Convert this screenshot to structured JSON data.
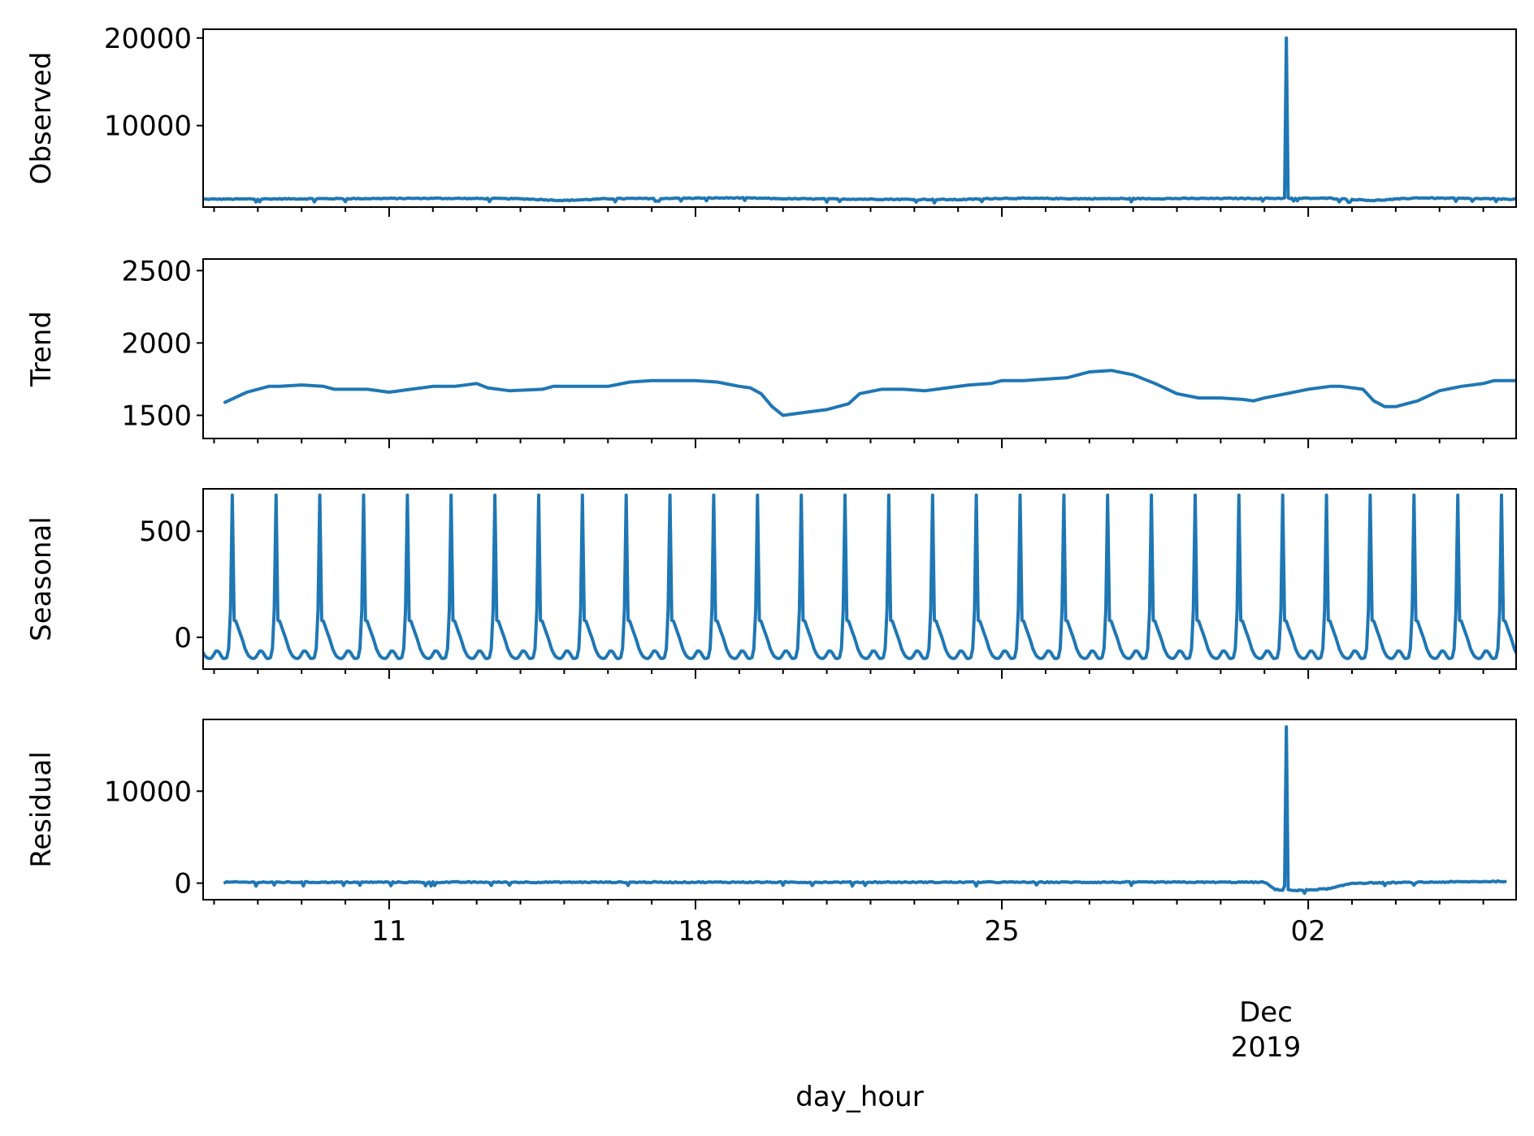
{
  "chart_data": {
    "type": "line",
    "xlabel": "day_hour",
    "x_tick_labels": [
      "11",
      "18",
      "25",
      "02"
    ],
    "x_tick_dates": [
      "2019-11-11",
      "2019-11-18",
      "2019-11-25",
      "2019-12-02"
    ],
    "x_month_label": "Dec",
    "x_year_label": "2019",
    "xlim": [
      "2019-11-06T18:00",
      "2019-12-06T18:00"
    ],
    "line_color": "#1f77b4",
    "panels": [
      {
        "ylabel": "Observed",
        "ylim": [
          700,
          21000
        ],
        "yticks": [
          10000,
          20000
        ],
        "ytick_labels": [
          "10000",
          "20000"
        ],
        "series": [
          {
            "kind": "noisy",
            "base": [
              [
                "2019-11-06T18:00",
                1600
              ],
              [
                "2019-11-12T00:00",
                1700
              ],
              [
                "2019-11-14T00:00",
                1650
              ],
              [
                "2019-11-15T00:00",
                1450
              ],
              [
                "2019-11-16T00:00",
                1650
              ],
              [
                "2019-11-19T00:00",
                1750
              ],
              [
                "2019-11-20T00:00",
                1650
              ],
              [
                "2019-11-22T00:00",
                1600
              ],
              [
                "2019-11-24T00:00",
                1550
              ],
              [
                "2019-11-25T00:00",
                1700
              ],
              [
                "2019-11-27T00:00",
                1650
              ],
              [
                "2019-12-01T12:00",
                1700
              ],
              [
                "2019-12-02T12:00",
                1700
              ],
              [
                "2019-12-03T12:00",
                1450
              ],
              [
                "2019-12-04T12:00",
                1750
              ],
              [
                "2019-12-06T18:00",
                1600
              ]
            ],
            "amp": 110,
            "spikes": [
              [
                "2019-12-01T11:00",
                1750
              ],
              [
                "2019-12-01T12:00",
                20000
              ],
              [
                "2019-12-01T13:00",
                1750
              ]
            ]
          }
        ]
      },
      {
        "ylabel": "Trend",
        "ylim": [
          1340,
          2580
        ],
        "yticks": [
          1500,
          2000,
          2500
        ],
        "ytick_labels": [
          "1500",
          "2000",
          "2500"
        ],
        "series": [
          {
            "kind": "points",
            "points": [
              [
                "2019-11-07T06:00",
                1590
              ],
              [
                "2019-11-07T18:00",
                1660
              ],
              [
                "2019-11-08T06:00",
                1700
              ],
              [
                "2019-11-08T12:00",
                1700
              ],
              [
                "2019-11-09T00:00",
                1710
              ],
              [
                "2019-11-09T12:00",
                1700
              ],
              [
                "2019-11-09T18:00",
                1680
              ],
              [
                "2019-11-10T12:00",
                1680
              ],
              [
                "2019-11-11T00:00",
                1660
              ],
              [
                "2019-11-11T12:00",
                1680
              ],
              [
                "2019-11-12T00:00",
                1700
              ],
              [
                "2019-11-12T12:00",
                1700
              ],
              [
                "2019-11-13T00:00",
                1720
              ],
              [
                "2019-11-13T06:00",
                1690
              ],
              [
                "2019-11-13T18:00",
                1670
              ],
              [
                "2019-11-14T12:00",
                1680
              ],
              [
                "2019-11-14T18:00",
                1700
              ],
              [
                "2019-11-15T12:00",
                1700
              ],
              [
                "2019-11-16T00:00",
                1700
              ],
              [
                "2019-11-16T12:00",
                1730
              ],
              [
                "2019-11-17T00:00",
                1740
              ],
              [
                "2019-11-18T00:00",
                1740
              ],
              [
                "2019-11-18T12:00",
                1730
              ],
              [
                "2019-11-19T00:00",
                1700
              ],
              [
                "2019-11-19T06:00",
                1690
              ],
              [
                "2019-11-19T12:00",
                1650
              ],
              [
                "2019-11-19T18:00",
                1560
              ],
              [
                "2019-11-20T00:00",
                1500
              ],
              [
                "2019-11-20T12:00",
                1520
              ],
              [
                "2019-11-21T00:00",
                1540
              ],
              [
                "2019-11-21T12:00",
                1580
              ],
              [
                "2019-11-21T18:00",
                1650
              ],
              [
                "2019-11-22T06:00",
                1680
              ],
              [
                "2019-11-22T18:00",
                1680
              ],
              [
                "2019-11-23T06:00",
                1670
              ],
              [
                "2019-11-23T18:00",
                1690
              ],
              [
                "2019-11-24T06:00",
                1710
              ],
              [
                "2019-11-24T18:00",
                1720
              ],
              [
                "2019-11-25T00:00",
                1740
              ],
              [
                "2019-11-25T12:00",
                1740
              ],
              [
                "2019-11-26T00:00",
                1750
              ],
              [
                "2019-11-26T12:00",
                1760
              ],
              [
                "2019-11-26T18:00",
                1780
              ],
              [
                "2019-11-27T00:00",
                1800
              ],
              [
                "2019-11-27T12:00",
                1810
              ],
              [
                "2019-11-28T00:00",
                1780
              ],
              [
                "2019-11-28T12:00",
                1720
              ],
              [
                "2019-11-29T00:00",
                1650
              ],
              [
                "2019-11-29T12:00",
                1620
              ],
              [
                "2019-11-30T00:00",
                1620
              ],
              [
                "2019-11-30T12:00",
                1610
              ],
              [
                "2019-11-30T18:00",
                1600
              ],
              [
                "2019-12-01T00:00",
                1620
              ],
              [
                "2019-12-01T12:00",
                1650
              ],
              [
                "2019-12-02T00:00",
                1680
              ],
              [
                "2019-12-02T12:00",
                1700
              ],
              [
                "2019-12-02T18:00",
                1700
              ],
              [
                "2019-12-03T06:00",
                1680
              ],
              [
                "2019-12-03T12:00",
                1600
              ],
              [
                "2019-12-03T18:00",
                1560
              ],
              [
                "2019-12-04T00:00",
                1560
              ],
              [
                "2019-12-04T06:00",
                1580
              ],
              [
                "2019-12-04T12:00",
                1600
              ],
              [
                "2019-12-05T00:00",
                1670
              ],
              [
                "2019-12-05T12:00",
                1700
              ],
              [
                "2019-12-06T00:00",
                1720
              ],
              [
                "2019-12-06T06:00",
                1740
              ],
              [
                "2019-12-06T18:00",
                1740
              ]
            ],
            "rescale_x": true
          }
        ]
      },
      {
        "ylabel": "Seasonal",
        "ylim": [
          -150,
          700
        ],
        "yticks": [
          0,
          500
        ],
        "ytick_labels": [
          "0",
          "500"
        ],
        "series": [
          {
            "kind": "periodic",
            "period_days": 1,
            "profile": [
              [
                0.0,
                670
              ],
              [
                0.04,
                80
              ],
              [
                0.09,
                75
              ],
              [
                0.14,
                40
              ],
              [
                0.23,
                -10
              ],
              [
                0.3,
                -60
              ],
              [
                0.38,
                -90
              ],
              [
                0.45,
                -100
              ],
              [
                0.52,
                -100
              ],
              [
                0.58,
                -80
              ],
              [
                0.64,
                -60
              ],
              [
                0.7,
                -70
              ],
              [
                0.78,
                -100
              ],
              [
                0.85,
                -100
              ],
              [
                0.9,
                -90
              ],
              [
                0.95,
                20
              ],
              [
                1.0,
                670
              ]
            ],
            "phase_start": "2019-11-07T10:00"
          }
        ]
      },
      {
        "ylabel": "Residual",
        "ylim": [
          -1800,
          17800
        ],
        "yticks": [
          0,
          10000
        ],
        "ytick_labels": [
          "0",
          "10000"
        ],
        "series": [
          {
            "kind": "noisy",
            "base": [
              [
                "2019-11-07T06:00",
                100
              ],
              [
                "2019-12-01T00:00",
                100
              ],
              [
                "2019-12-01T06:00",
                -700
              ],
              [
                "2019-12-01T18:00",
                -800
              ],
              [
                "2019-12-02T12:00",
                -600
              ],
              [
                "2019-12-03T00:00",
                0
              ],
              [
                "2019-12-06T12:00",
                200
              ]
            ],
            "amp": 120,
            "spikes": [
              [
                "2019-12-01T11:00",
                -300
              ],
              [
                "2019-12-01T12:00",
                17000
              ],
              [
                "2019-12-01T13:00",
                -700
              ]
            ]
          }
        ]
      }
    ]
  }
}
